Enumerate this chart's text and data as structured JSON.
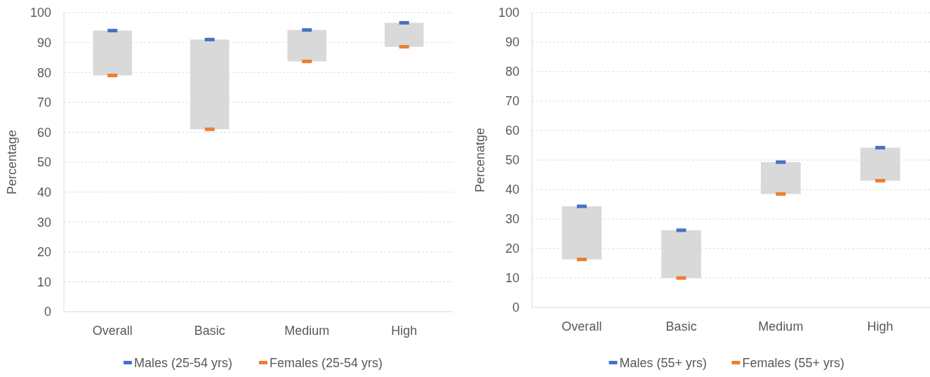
{
  "chart_data": [
    {
      "type": "bar",
      "ylabel": "Percentage",
      "categories": [
        "Overall",
        "Basic",
        "Medium",
        "High"
      ],
      "ylim": [
        0,
        100
      ],
      "yticks": [
        0,
        10,
        20,
        30,
        40,
        50,
        60,
        70,
        80,
        90,
        100
      ],
      "grid": "y",
      "legend": "bottom",
      "series": [
        {
          "type": "bar",
          "color": "#d9d9d9",
          "base": [
            79,
            61,
            83.7,
            88.6
          ],
          "values": [
            15,
            30,
            10.5,
            8
          ]
        },
        {
          "type": "scatter",
          "name": "Males (25-54 yrs)",
          "color": "#4472c4",
          "values": [
            94,
            91,
            94.2,
            96.6
          ]
        },
        {
          "type": "scatter",
          "name": "Females (25-54 yrs)",
          "color": "#ed7d31",
          "values": [
            79,
            61,
            83.7,
            88.6
          ]
        }
      ]
    },
    {
      "type": "bar",
      "ylabel": "Percenatge",
      "categories": [
        "Overall",
        "Basic",
        "Medium",
        "High"
      ],
      "ylim": [
        0,
        100
      ],
      "yticks": [
        0,
        10,
        20,
        30,
        40,
        50,
        60,
        70,
        80,
        90,
        100
      ],
      "grid": "y",
      "legend": "bottom",
      "series": [
        {
          "type": "bar",
          "color": "#d9d9d9",
          "base": [
            16.3,
            10,
            38.5,
            43
          ],
          "values": [
            18,
            16.2,
            10.8,
            11.2
          ]
        },
        {
          "type": "scatter",
          "name": "Males (55+ yrs)",
          "color": "#4472c4",
          "values": [
            34.3,
            26.2,
            49.3,
            54.2
          ]
        },
        {
          "type": "scatter",
          "name": "Females (55+ yrs)",
          "color": "#ed7d31",
          "values": [
            16.3,
            10,
            38.5,
            43
          ]
        }
      ]
    }
  ]
}
